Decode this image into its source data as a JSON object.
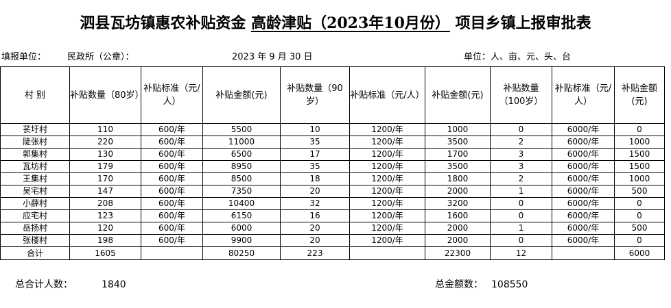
{
  "title_prefix": "泗县瓦坊镇惠农补贴资金",
  "title_underlined": "高龄津贴（2023年10月份）",
  "title_suffix": "项目乡镇上报审批表",
  "report_unit_label": "填报单位：",
  "report_unit_value": "民政所（公章）：",
  "date": "2023 年 9 月 30 日",
  "units": "单位：人、亩、元、头、台",
  "headers": [
    "村 别",
    "补贴数量（80岁）",
    "补贴标准（元/人）",
    "补贴金额(元)",
    "补贴数量（90岁）",
    "补贴标准（元/人）",
    "补贴金额(元)",
    "补贴数量（100岁）",
    "补贴标准（元/人）",
    "补贴金额(元)"
  ],
  "rows": [
    [
      "苌圩村",
      "110",
      "600/年",
      "5500",
      "10",
      "1200/年",
      "1000",
      "0",
      "6000/年",
      "0"
    ],
    [
      "陡张村",
      "220",
      "600/年",
      "11000",
      "35",
      "1200/年",
      "3500",
      "2",
      "6000/年",
      "1000"
    ],
    [
      "郭集村",
      "130",
      "600/年",
      "6500",
      "17",
      "1200/年",
      "1700",
      "3",
      "6000/年",
      "1500"
    ],
    [
      "瓦坊村",
      "179",
      "600/年",
      "8950",
      "35",
      "1200/年",
      "3500",
      "3",
      "6000/年",
      "1500"
    ],
    [
      "王集村",
      "170",
      "600/年",
      "8500",
      "18",
      "1200/年",
      "1800",
      "2",
      "6000/年",
      "1000"
    ],
    [
      "吴宅村",
      "147",
      "600/年",
      "7350",
      "20",
      "1200/年",
      "2000",
      "1",
      "6000/年",
      "500"
    ],
    [
      "小薛村",
      "208",
      "600/年",
      "10400",
      "32",
      "1200/年",
      "3200",
      "0",
      "6000/年",
      "0"
    ],
    [
      "应宅村",
      "123",
      "600/年",
      "6150",
      "16",
      "1200/年",
      "1600",
      "0",
      "6000/年",
      "0"
    ],
    [
      "岳扬村",
      "120",
      "600/年",
      "6000",
      "20",
      "1200/年",
      "2000",
      "1",
      "6000/年",
      "500"
    ],
    [
      "张楼村",
      "198",
      "600/年",
      "9900",
      "20",
      "1200/年",
      "2000",
      "0",
      "6000/年",
      "0"
    ]
  ],
  "totals": [
    "合计",
    "1605",
    "",
    "80250",
    "223",
    "",
    "22300",
    "12",
    "",
    "6000"
  ],
  "footer": {
    "total_people_label": "总合计人数：",
    "total_people_value": "1840",
    "total_amount_label": "总金额数：",
    "total_amount_value": "108550"
  }
}
